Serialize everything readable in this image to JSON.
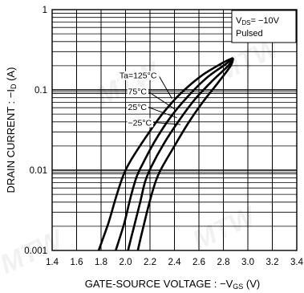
{
  "chart_data": {
    "type": "line",
    "title": "",
    "xlabel": "GATE-SOURCE VOLTAGE : −V",
    "xlabel_sub": "GS",
    "xlabel_unit": " (V)",
    "ylabel": "DRAIN CURRENT : −I",
    "ylabel_sub": "D",
    "ylabel_unit": " (A)",
    "xlim": [
      1.4,
      3.4
    ],
    "ylim": [
      0.001,
      1
    ],
    "yscale": "log",
    "grid": true,
    "x_ticks": [
      "1.4",
      "1.6",
      "1.8",
      "2.0",
      "2.2",
      "2.4",
      "2.6",
      "2.8",
      "3.0",
      "3.2",
      "3.4"
    ],
    "y_ticks": [
      "0.001",
      "0.01",
      "0.1",
      "1"
    ],
    "conditions": {
      "line1_prefix": "V",
      "line1_sub": "DS",
      "line1_value": "= −10V",
      "line2": "Pulsed"
    },
    "series": [
      {
        "name": "Ta=125°C",
        "x": [
          1.78,
          1.86,
          1.92,
          1.98,
          2.04,
          2.16,
          2.3,
          2.45,
          2.62,
          2.8,
          2.88
        ],
        "y": [
          0.001,
          0.0022,
          0.0045,
          0.0085,
          0.013,
          0.025,
          0.05,
          0.09,
          0.15,
          0.22,
          0.25
        ]
      },
      {
        "name": "75°C",
        "x": [
          1.92,
          1.99,
          2.04,
          2.09,
          2.14,
          2.24,
          2.36,
          2.5,
          2.66,
          2.82,
          2.88
        ],
        "y": [
          0.001,
          0.0022,
          0.0045,
          0.0082,
          0.012,
          0.023,
          0.044,
          0.08,
          0.14,
          0.21,
          0.25
        ]
      },
      {
        "name": "25°C",
        "x": [
          2.02,
          2.07,
          2.12,
          2.16,
          2.21,
          2.31,
          2.43,
          2.56,
          2.71,
          2.84,
          2.88
        ],
        "y": [
          0.001,
          0.002,
          0.004,
          0.0072,
          0.011,
          0.021,
          0.04,
          0.074,
          0.13,
          0.2,
          0.25
        ]
      },
      {
        "name": "−25°C",
        "x": [
          2.1,
          2.15,
          2.2,
          2.25,
          2.3,
          2.4,
          2.51,
          2.63,
          2.76,
          2.86,
          2.88
        ],
        "y": [
          0.001,
          0.0021,
          0.0042,
          0.0075,
          0.011,
          0.02,
          0.038,
          0.07,
          0.125,
          0.2,
          0.25
        ]
      }
    ],
    "label_anchors": [
      {
        "label_x": 1.95,
        "label_y": 0.139,
        "line_x": 2.38,
        "line_y": 0.078
      },
      {
        "label_x": 2.02,
        "label_y": 0.088,
        "line_x": 2.4,
        "line_y": 0.058
      },
      {
        "label_x": 2.02,
        "label_y": 0.056,
        "line_x": 2.42,
        "line_y": 0.045
      },
      {
        "label_x": 2.02,
        "label_y": 0.036,
        "line_x": 2.45,
        "line_y": 0.037
      }
    ],
    "watermark": "MTW"
  }
}
